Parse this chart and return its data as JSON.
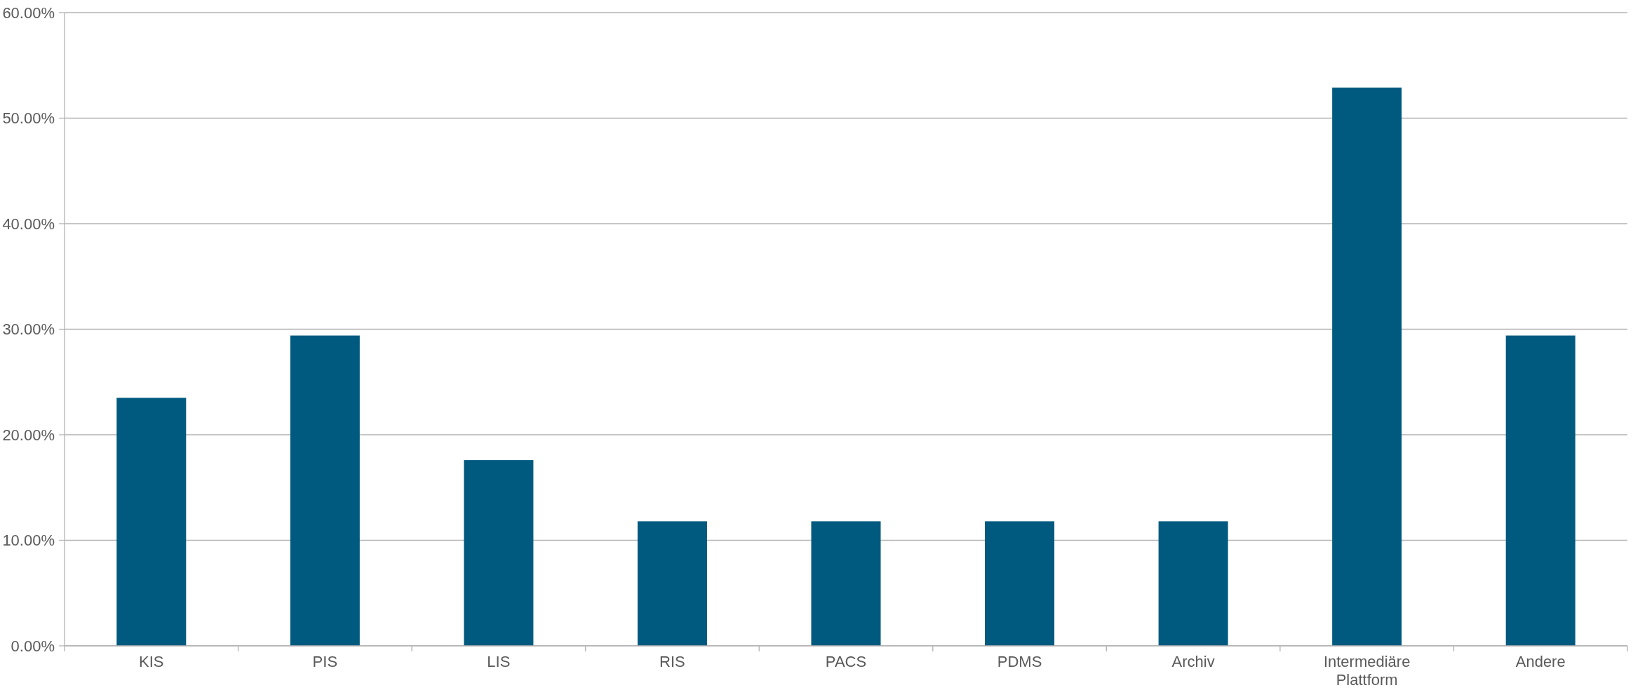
{
  "chart_data": {
    "type": "bar",
    "categories": [
      "KIS",
      "PIS",
      "LIS",
      "RIS",
      "PACS",
      "PDMS",
      "Archiv",
      "Intermediäre Plattform",
      "Andere"
    ],
    "values": [
      23.5,
      29.4,
      17.6,
      11.8,
      11.8,
      11.8,
      11.8,
      52.9,
      29.4
    ],
    "color": "#005a7f",
    "ylim": [
      0,
      60
    ],
    "yticks": [
      {
        "value": 0,
        "label": "0.00%"
      },
      {
        "value": 10,
        "label": "10.00%"
      },
      {
        "value": 20,
        "label": "20.00%"
      },
      {
        "value": 30,
        "label": "30.00%"
      },
      {
        "value": 40,
        "label": "40.00%"
      },
      {
        "value": 50,
        "label": "50.00%"
      },
      {
        "value": 60,
        "label": "60.00%"
      }
    ],
    "grid": "y"
  }
}
